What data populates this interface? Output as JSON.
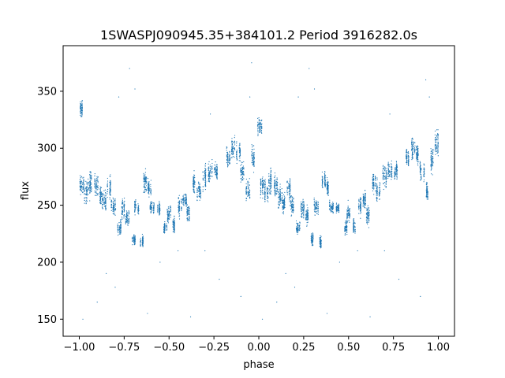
{
  "chart_data": {
    "type": "scatter",
    "title": "1SWASPJ090945.35+384101.2 Period 3916282.0s",
    "xlabel": "phase",
    "ylabel": "flux",
    "xlim": [
      -1.09,
      1.09
    ],
    "ylim": [
      135,
      390
    ],
    "xticks": [
      -1.0,
      -0.75,
      -0.5,
      -0.25,
      0.0,
      0.25,
      0.5,
      0.75,
      1.0
    ],
    "xtick_labels": [
      "−1.00",
      "−0.75",
      "−0.50",
      "−0.25",
      "0.00",
      "0.25",
      "0.50",
      "0.75",
      "1.00"
    ],
    "yticks": [
      150,
      200,
      250,
      300,
      350
    ],
    "ytick_labels": [
      "150",
      "200",
      "250",
      "300",
      "350"
    ],
    "grid": false,
    "marker_color": "#1f77b4",
    "clusters": [
      {
        "x": -0.995,
        "y": 334,
        "spread": 8
      },
      {
        "x": -0.985,
        "y": 268,
        "spread": 10
      },
      {
        "x": -0.96,
        "y": 262,
        "spread": 12
      },
      {
        "x": -0.935,
        "y": 270,
        "spread": 14
      },
      {
        "x": -0.905,
        "y": 268,
        "spread": 12
      },
      {
        "x": -0.88,
        "y": 258,
        "spread": 10
      },
      {
        "x": -0.86,
        "y": 252,
        "spread": 10
      },
      {
        "x": -0.835,
        "y": 265,
        "spread": 12
      },
      {
        "x": -0.81,
        "y": 250,
        "spread": 10
      },
      {
        "x": -0.78,
        "y": 230,
        "spread": 6
      },
      {
        "x": -0.755,
        "y": 248,
        "spread": 10
      },
      {
        "x": -0.73,
        "y": 240,
        "spread": 8
      },
      {
        "x": -0.7,
        "y": 220,
        "spread": 6
      },
      {
        "x": -0.68,
        "y": 248,
        "spread": 8
      },
      {
        "x": -0.655,
        "y": 218,
        "spread": 6
      },
      {
        "x": -0.635,
        "y": 270,
        "spread": 10
      },
      {
        "x": -0.61,
        "y": 265,
        "spread": 8
      },
      {
        "x": -0.595,
        "y": 248,
        "spread": 6
      },
      {
        "x": -0.56,
        "y": 248,
        "spread": 6
      },
      {
        "x": -0.52,
        "y": 230,
        "spread": 6
      },
      {
        "x": -0.5,
        "y": 242,
        "spread": 8
      },
      {
        "x": -0.47,
        "y": 232,
        "spread": 8
      },
      {
        "x": -0.44,
        "y": 250,
        "spread": 10
      },
      {
        "x": -0.415,
        "y": 255,
        "spread": 8
      },
      {
        "x": -0.39,
        "y": 242,
        "spread": 10
      },
      {
        "x": -0.36,
        "y": 270,
        "spread": 10
      },
      {
        "x": -0.335,
        "y": 262,
        "spread": 10
      },
      {
        "x": -0.3,
        "y": 275,
        "spread": 12
      },
      {
        "x": -0.27,
        "y": 280,
        "spread": 10
      },
      {
        "x": -0.24,
        "y": 280,
        "spread": 8
      },
      {
        "x": -0.17,
        "y": 292,
        "spread": 10
      },
      {
        "x": -0.14,
        "y": 300,
        "spread": 12
      },
      {
        "x": -0.115,
        "y": 295,
        "spread": 10
      },
      {
        "x": -0.09,
        "y": 280,
        "spread": 10
      },
      {
        "x": -0.06,
        "y": 262,
        "spread": 10
      },
      {
        "x": -0.035,
        "y": 290,
        "spread": 12
      },
      {
        "x": 0.005,
        "y": 320,
        "spread": 10
      },
      {
        "x": 0.015,
        "y": 268,
        "spread": 10
      },
      {
        "x": 0.04,
        "y": 262,
        "spread": 12
      },
      {
        "x": 0.065,
        "y": 270,
        "spread": 14
      },
      {
        "x": 0.095,
        "y": 268,
        "spread": 12
      },
      {
        "x": 0.12,
        "y": 258,
        "spread": 10
      },
      {
        "x": 0.14,
        "y": 252,
        "spread": 10
      },
      {
        "x": 0.165,
        "y": 265,
        "spread": 12
      },
      {
        "x": 0.19,
        "y": 250,
        "spread": 10
      },
      {
        "x": 0.22,
        "y": 230,
        "spread": 6
      },
      {
        "x": 0.245,
        "y": 248,
        "spread": 10
      },
      {
        "x": 0.27,
        "y": 240,
        "spread": 8
      },
      {
        "x": 0.3,
        "y": 220,
        "spread": 6
      },
      {
        "x": 0.32,
        "y": 248,
        "spread": 8
      },
      {
        "x": 0.345,
        "y": 218,
        "spread": 6
      },
      {
        "x": 0.365,
        "y": 270,
        "spread": 10
      },
      {
        "x": 0.39,
        "y": 265,
        "spread": 8
      },
      {
        "x": 0.405,
        "y": 248,
        "spread": 6
      },
      {
        "x": 0.44,
        "y": 248,
        "spread": 6
      },
      {
        "x": 0.48,
        "y": 230,
        "spread": 6
      },
      {
        "x": 0.5,
        "y": 242,
        "spread": 8
      },
      {
        "x": 0.53,
        "y": 232,
        "spread": 8
      },
      {
        "x": 0.56,
        "y": 250,
        "spread": 10
      },
      {
        "x": 0.585,
        "y": 255,
        "spread": 8
      },
      {
        "x": 0.61,
        "y": 242,
        "spread": 10
      },
      {
        "x": 0.64,
        "y": 270,
        "spread": 10
      },
      {
        "x": 0.665,
        "y": 262,
        "spread": 10
      },
      {
        "x": 0.7,
        "y": 275,
        "spread": 12
      },
      {
        "x": 0.73,
        "y": 280,
        "spread": 10
      },
      {
        "x": 0.76,
        "y": 280,
        "spread": 8
      },
      {
        "x": 0.83,
        "y": 292,
        "spread": 10
      },
      {
        "x": 0.86,
        "y": 300,
        "spread": 12
      },
      {
        "x": 0.885,
        "y": 295,
        "spread": 10
      },
      {
        "x": 0.91,
        "y": 280,
        "spread": 10
      },
      {
        "x": 0.94,
        "y": 262,
        "spread": 10
      },
      {
        "x": 0.965,
        "y": 290,
        "spread": 12
      },
      {
        "x": 0.99,
        "y": 305,
        "spread": 14
      }
    ],
    "outliers": [
      {
        "x": -0.98,
        "y": 150
      },
      {
        "x": -0.9,
        "y": 165
      },
      {
        "x": -0.85,
        "y": 190
      },
      {
        "x": -0.8,
        "y": 178
      },
      {
        "x": -0.78,
        "y": 345
      },
      {
        "x": -0.72,
        "y": 370
      },
      {
        "x": -0.62,
        "y": 155
      },
      {
        "x": -0.55,
        "y": 200
      },
      {
        "x": -0.45,
        "y": 210
      },
      {
        "x": -0.38,
        "y": 152
      },
      {
        "x": -0.3,
        "y": 210
      },
      {
        "x": -0.22,
        "y": 185
      },
      {
        "x": -0.1,
        "y": 170
      },
      {
        "x": -0.05,
        "y": 345
      },
      {
        "x": 0.02,
        "y": 150
      },
      {
        "x": 0.1,
        "y": 165
      },
      {
        "x": 0.15,
        "y": 190
      },
      {
        "x": 0.2,
        "y": 178
      },
      {
        "x": 0.22,
        "y": 345
      },
      {
        "x": 0.28,
        "y": 370
      },
      {
        "x": 0.38,
        "y": 155
      },
      {
        "x": 0.45,
        "y": 200
      },
      {
        "x": 0.55,
        "y": 210
      },
      {
        "x": 0.62,
        "y": 152
      },
      {
        "x": 0.7,
        "y": 210
      },
      {
        "x": 0.78,
        "y": 185
      },
      {
        "x": 0.9,
        "y": 170
      },
      {
        "x": 0.95,
        "y": 345
      },
      {
        "x": -0.69,
        "y": 352
      },
      {
        "x": 0.31,
        "y": 352
      },
      {
        "x": -0.27,
        "y": 330
      },
      {
        "x": 0.73,
        "y": 330
      },
      {
        "x": -0.04,
        "y": 375
      },
      {
        "x": 0.93,
        "y": 360
      }
    ]
  }
}
